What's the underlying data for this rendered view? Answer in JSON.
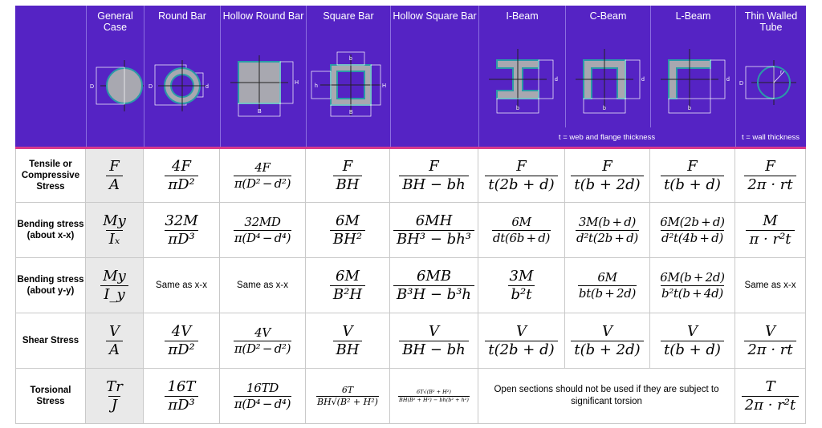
{
  "colors": {
    "header": "#5523c4",
    "accent_line": "#d83a8c",
    "general_case_bg": "#e9e9e9"
  },
  "columns": [
    "General Case",
    "Round Bar",
    "Hollow Round Bar",
    "Square Bar",
    "Hollow Square Bar",
    "I-Beam",
    "C-Beam",
    "L-Beam",
    "Thin Walled Tube"
  ],
  "notes": {
    "beams": "t = web and flange thickness",
    "tube": "t = wall thickness"
  },
  "diagram_labels": {
    "D": "D",
    "d": "d",
    "H": "H",
    "B": "B",
    "h": "h",
    "b": "b",
    "r": "r"
  },
  "rows": [
    {
      "label": "Tensile or Compressive Stress",
      "cells": [
        {
          "n": "F",
          "d": "A"
        },
        {
          "n": "4F",
          "d": "πD²"
        },
        {
          "n": "4F",
          "d": "π(D² − d²)"
        },
        {
          "n": "F",
          "d": "BH"
        },
        {
          "n": "F",
          "d": "BH − bh"
        },
        {
          "n": "F",
          "d": "t(2b + d)"
        },
        {
          "n": "F",
          "d": "t(b + 2d)"
        },
        {
          "n": "F",
          "d": "t(b + d)"
        },
        {
          "n": "F",
          "d": "2π · rt"
        }
      ]
    },
    {
      "label": "Bending stress (about x-x)",
      "cells": [
        {
          "n": "My",
          "d": "Iₓ"
        },
        {
          "n": "32M",
          "d": "πD³"
        },
        {
          "n": "32MD",
          "d": "π(D⁴ − d⁴)"
        },
        {
          "n": "6M",
          "d": "BH²"
        },
        {
          "n": "6MH",
          "d": "BH³ − bh³"
        },
        {
          "n": "6M",
          "d": "dt(6b + d)"
        },
        {
          "n": "3M(b + d)",
          "d": "d²t(2b + d)"
        },
        {
          "n": "6M(2b + d)",
          "d": "d²t(4b + d)"
        },
        {
          "n": "M",
          "d": "π · r²t"
        }
      ]
    },
    {
      "label": "Bending stress (about y-y)",
      "cells": [
        {
          "n": "My",
          "d": "I_y"
        },
        {
          "text": "Same as x-x"
        },
        {
          "text": "Same as x-x"
        },
        {
          "n": "6M",
          "d": "B²H"
        },
        {
          "n": "6MB",
          "d": "B³H − b³h"
        },
        {
          "n": "3M",
          "d": "b²t"
        },
        {
          "n": "6M",
          "d": "bt(b + 2d)"
        },
        {
          "n": "6M(b + 2d)",
          "d": "b²t(b + 4d)"
        },
        {
          "text": "Same as x-x"
        }
      ]
    },
    {
      "label": "Shear Stress",
      "cells": [
        {
          "n": "V",
          "d": "A"
        },
        {
          "n": "4V",
          "d": "πD²"
        },
        {
          "n": "4V",
          "d": "π(D² − d²)"
        },
        {
          "n": "V",
          "d": "BH"
        },
        {
          "n": "V",
          "d": "BH − bh"
        },
        {
          "n": "V",
          "d": "t(2b + d)"
        },
        {
          "n": "V",
          "d": "t(b + 2d)"
        },
        {
          "n": "V",
          "d": "t(b + d)"
        },
        {
          "n": "V",
          "d": "2π · rt"
        }
      ]
    },
    {
      "label": "Torsional Stress",
      "cells": [
        {
          "n": "Tr",
          "d": "J"
        },
        {
          "n": "16T",
          "d": "πD³"
        },
        {
          "n": "16TD",
          "d": "π(D⁴ − d⁴)"
        },
        {
          "n": "6T",
          "d": "BH√(B² + H²)",
          "size": "sm"
        },
        {
          "n": "6T√(B² + H²)",
          "d": "BH(B² + H²) − bh(b² + h²)",
          "size": "xs"
        },
        {
          "text": "Open sections should not be used if they are subject to significant torsion",
          "span": 3
        },
        {
          "n": "T",
          "d": "2π · r²t"
        }
      ]
    }
  ]
}
